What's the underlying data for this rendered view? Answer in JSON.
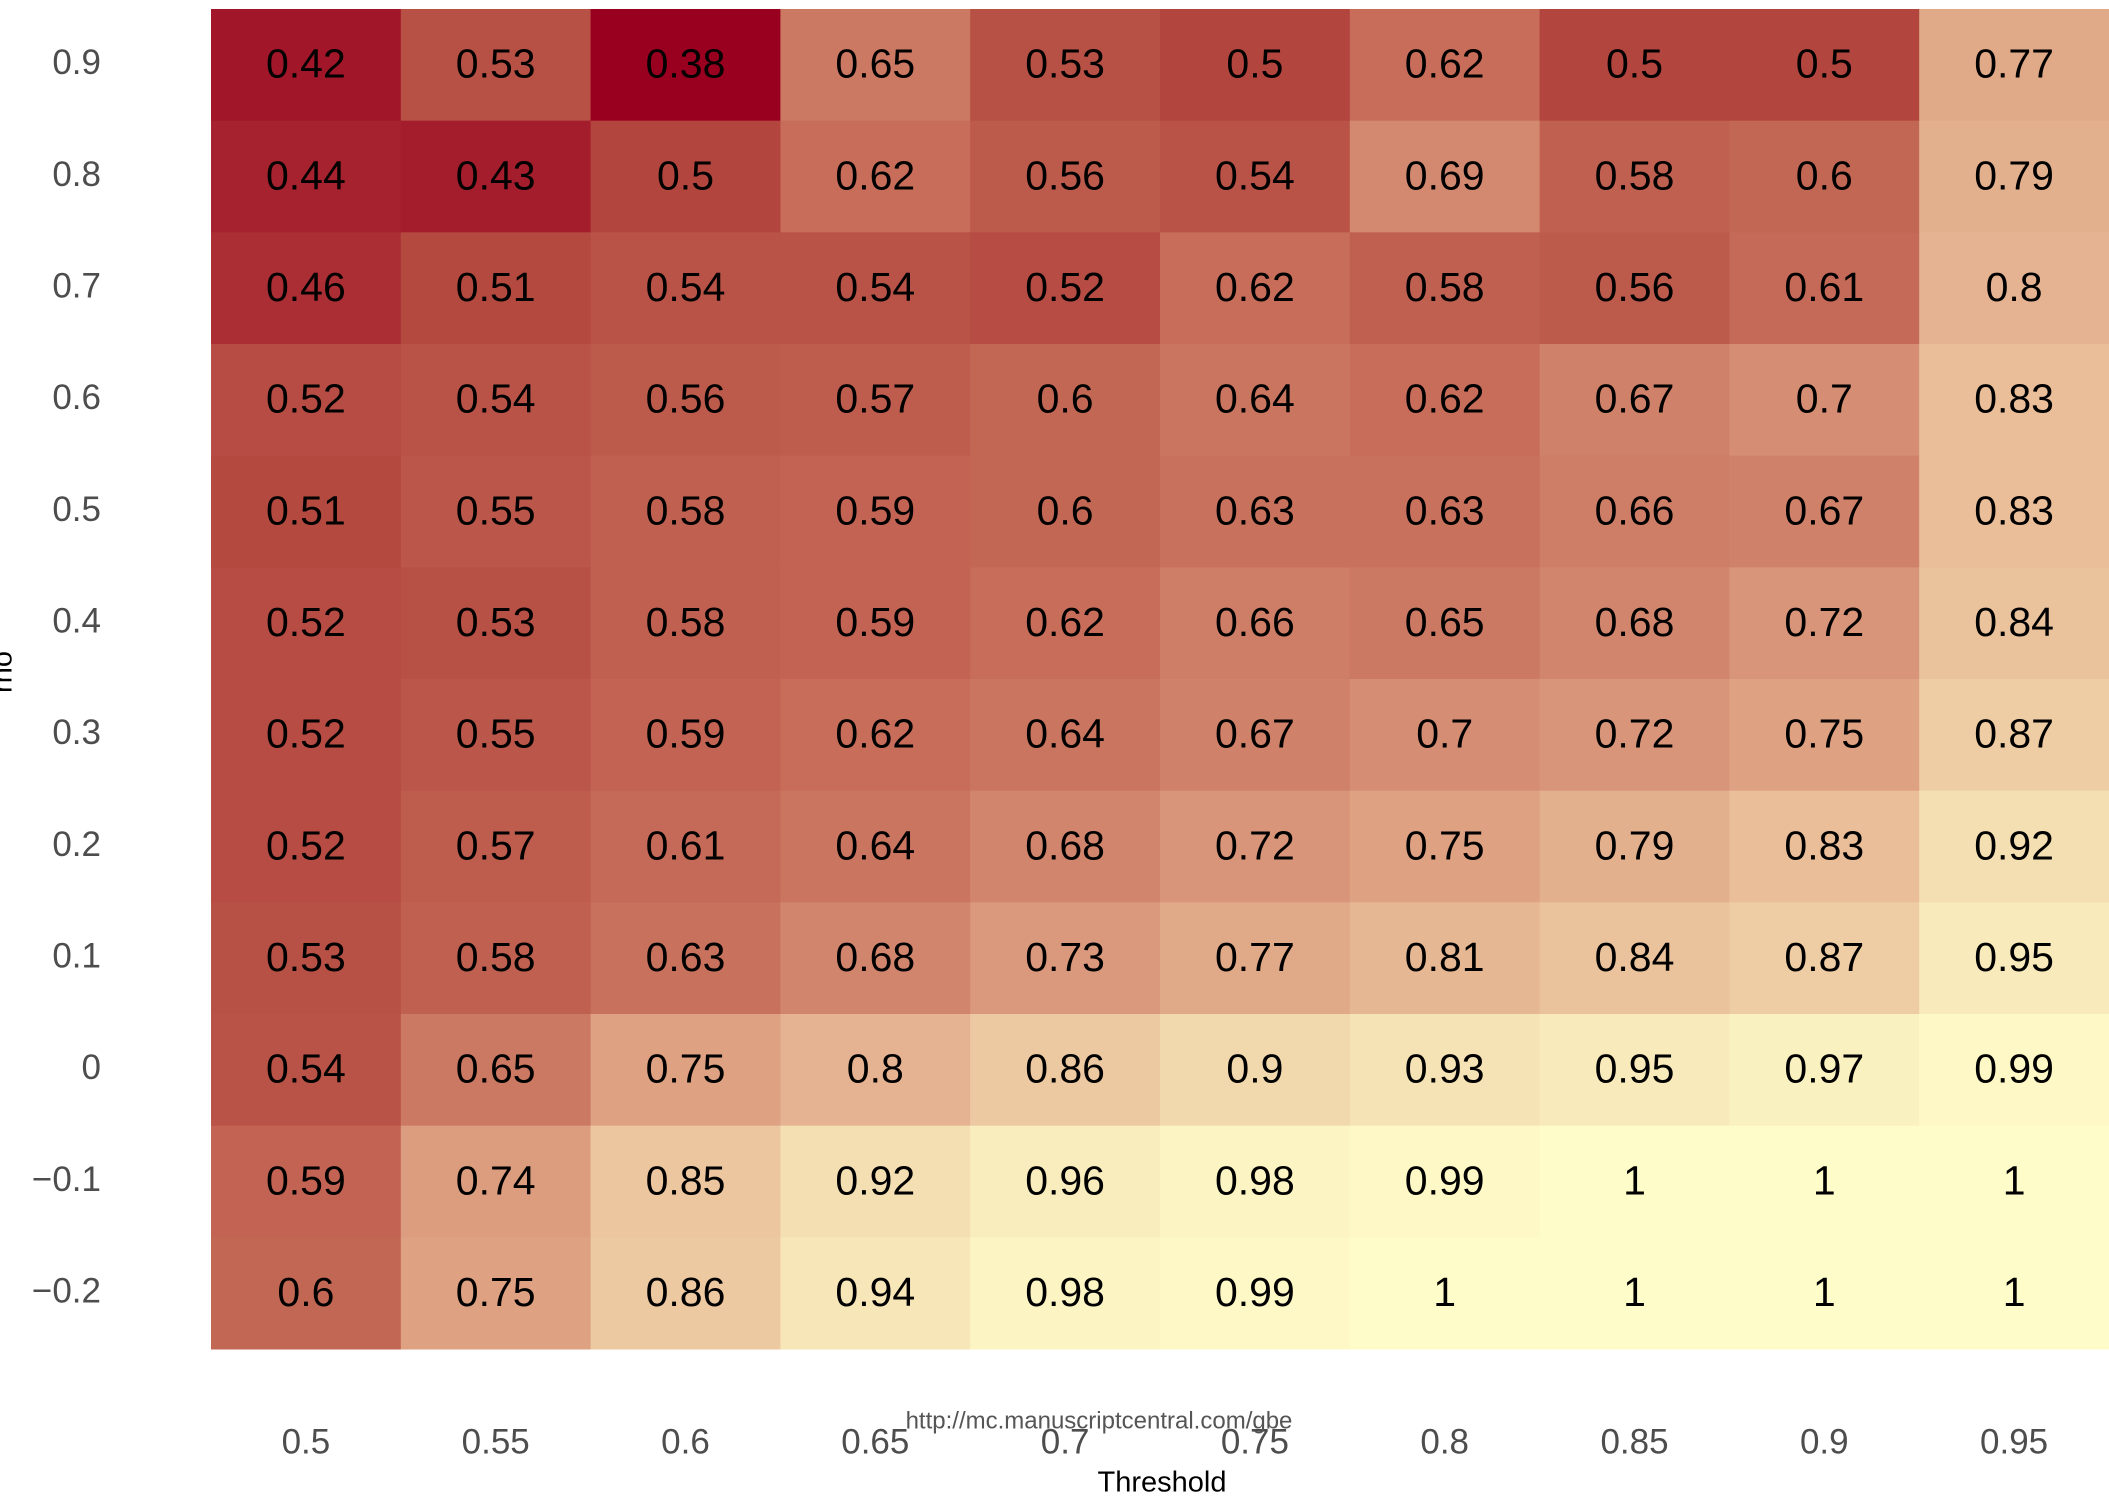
{
  "chart_data": {
    "type": "heatmap",
    "x_label": "Threshold",
    "y_label": "rho",
    "annotation": "http://mc.manuscriptcentral.com/gbe",
    "x": [
      0.5,
      0.55,
      0.6,
      0.65,
      0.7,
      0.75,
      0.8,
      0.85,
      0.9,
      0.95
    ],
    "y": [
      0.9,
      0.8,
      0.7,
      0.6,
      0.5,
      0.4,
      0.3,
      0.2,
      0.1,
      0,
      {
        "value": -0.1,
        "label": "−0.1"
      },
      {
        "value": -0.2,
        "label": "−0.2"
      }
    ],
    "values": [
      [
        0.42,
        0.53,
        0.38,
        0.65,
        0.53,
        0.5,
        0.62,
        0.5,
        0.5,
        0.77
      ],
      [
        0.44,
        0.43,
        0.5,
        0.62,
        0.56,
        0.54,
        0.69,
        0.58,
        0.6,
        0.79
      ],
      [
        0.46,
        0.51,
        0.54,
        0.54,
        0.52,
        0.62,
        0.58,
        0.56,
        0.61,
        0.8
      ],
      [
        0.52,
        0.54,
        0.56,
        0.57,
        0.6,
        0.64,
        0.62,
        0.67,
        0.7,
        0.83
      ],
      [
        0.51,
        0.55,
        0.58,
        0.59,
        0.6,
        0.63,
        0.63,
        0.66,
        0.67,
        0.83
      ],
      [
        0.52,
        0.53,
        0.58,
        0.59,
        0.62,
        0.66,
        0.65,
        0.68,
        0.72,
        0.84
      ],
      [
        0.52,
        0.55,
        0.59,
        0.62,
        0.64,
        0.67,
        0.7,
        0.72,
        0.75,
        0.87
      ],
      [
        0.52,
        0.57,
        0.61,
        0.64,
        0.68,
        0.72,
        0.75,
        0.79,
        0.83,
        0.92
      ],
      [
        0.53,
        0.58,
        0.63,
        0.68,
        0.73,
        0.77,
        0.81,
        0.84,
        0.87,
        0.95
      ],
      [
        0.54,
        0.65,
        0.75,
        0.8,
        0.86,
        0.9,
        0.93,
        0.95,
        0.97,
        0.99
      ],
      [
        0.59,
        0.74,
        0.85,
        0.92,
        0.96,
        0.98,
        0.99,
        1,
        1,
        1
      ],
      [
        0.6,
        0.75,
        0.86,
        0.94,
        0.98,
        0.99,
        1,
        1,
        1,
        1
      ]
    ],
    "colorscale": [
      "#99001f",
      "#b3473f",
      "#c8705c",
      "#dea283",
      "#efcfa6",
      "#fefcc8"
    ]
  }
}
